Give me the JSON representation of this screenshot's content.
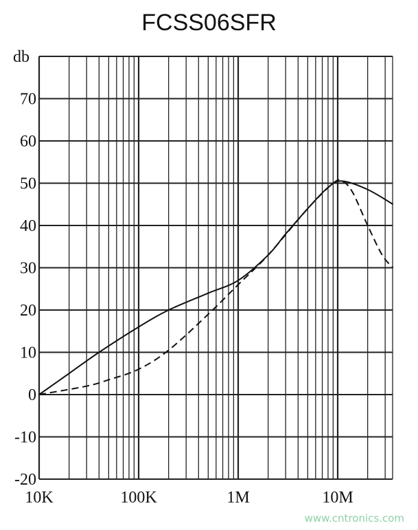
{
  "chart_data": {
    "type": "line",
    "title": "FCSS06SFR",
    "ylabel": "db",
    "xscale": "log",
    "xlim": [
      10000,
      36000000
    ],
    "ylim": [
      -20,
      80
    ],
    "grid": true,
    "x_tick_labels": [
      {
        "value": 10000,
        "label": "10K"
      },
      {
        "value": 100000,
        "label": "100K"
      },
      {
        "value": 1000000,
        "label": "1M"
      },
      {
        "value": 10000000,
        "label": "10M"
      }
    ],
    "y_tick_labels": [
      {
        "value": 70,
        "label": "70"
      },
      {
        "value": 60,
        "label": "60"
      },
      {
        "value": 50,
        "label": "50"
      },
      {
        "value": 40,
        "label": "40"
      },
      {
        "value": 30,
        "label": "30"
      },
      {
        "value": 20,
        "label": "20"
      },
      {
        "value": 10,
        "label": "10"
      },
      {
        "value": 0,
        "label": "0"
      },
      {
        "value": -10,
        "label": "-10"
      },
      {
        "value": -20,
        "label": "-20"
      }
    ],
    "series": [
      {
        "style": "solid",
        "color": "#111111",
        "x": [
          10000,
          20000,
          40000,
          100000,
          200000,
          500000,
          1000000,
          2000000,
          3000000,
          5000000,
          8000000,
          11000000,
          20000000,
          36000000
        ],
        "y": [
          0,
          5,
          10,
          16,
          20,
          24,
          27,
          33,
          38,
          44,
          49,
          50.5,
          48.5,
          45
        ]
      },
      {
        "style": "dashed",
        "color": "#111111",
        "x": [
          10000,
          30000,
          50000,
          100000,
          200000,
          500000,
          1000000,
          2000000,
          5000000,
          9000000,
          11000000,
          14000000,
          20000000,
          28000000,
          36000000
        ],
        "y": [
          0,
          2,
          3.5,
          6,
          10.5,
          19,
          26,
          33,
          44,
          50,
          50.5,
          48,
          40,
          33,
          30
        ]
      }
    ]
  },
  "watermark": "www.cntronics.com"
}
